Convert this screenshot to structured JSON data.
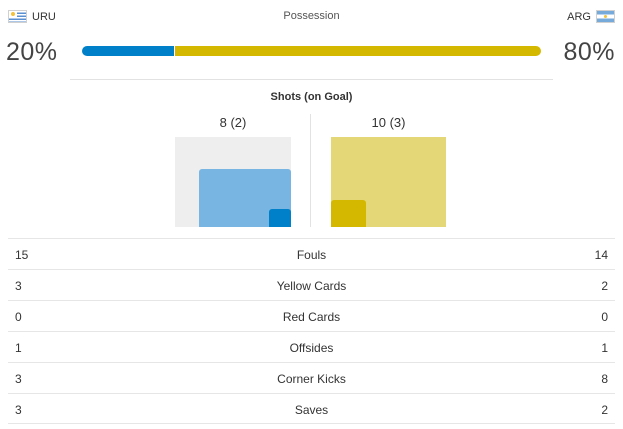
{
  "header": {
    "home_team": "URU",
    "away_team": "ARG",
    "home_flag": "uruguay-flag-icon",
    "away_flag": "argentina-flag-icon",
    "title": "Possession"
  },
  "possession": {
    "home_pct": "20%",
    "away_pct": "80%",
    "home_value": 20,
    "away_value": 80,
    "home_color": "#0080c8",
    "away_color": "#d4b800"
  },
  "shots": {
    "title": "Shots (on Goal)",
    "home_label": "8 (2)",
    "away_label": "10 (3)",
    "home_total": 8,
    "home_on_goal": 2,
    "away_total": 10,
    "away_on_goal": 3
  },
  "stats": [
    {
      "label": "Fouls",
      "home": "15",
      "away": "14"
    },
    {
      "label": "Yellow Cards",
      "home": "3",
      "away": "2"
    },
    {
      "label": "Red Cards",
      "home": "0",
      "away": "0"
    },
    {
      "label": "Offsides",
      "home": "1",
      "away": "1"
    },
    {
      "label": "Corner Kicks",
      "home": "3",
      "away": "8"
    },
    {
      "label": "Saves",
      "home": "3",
      "away": "2"
    }
  ]
}
